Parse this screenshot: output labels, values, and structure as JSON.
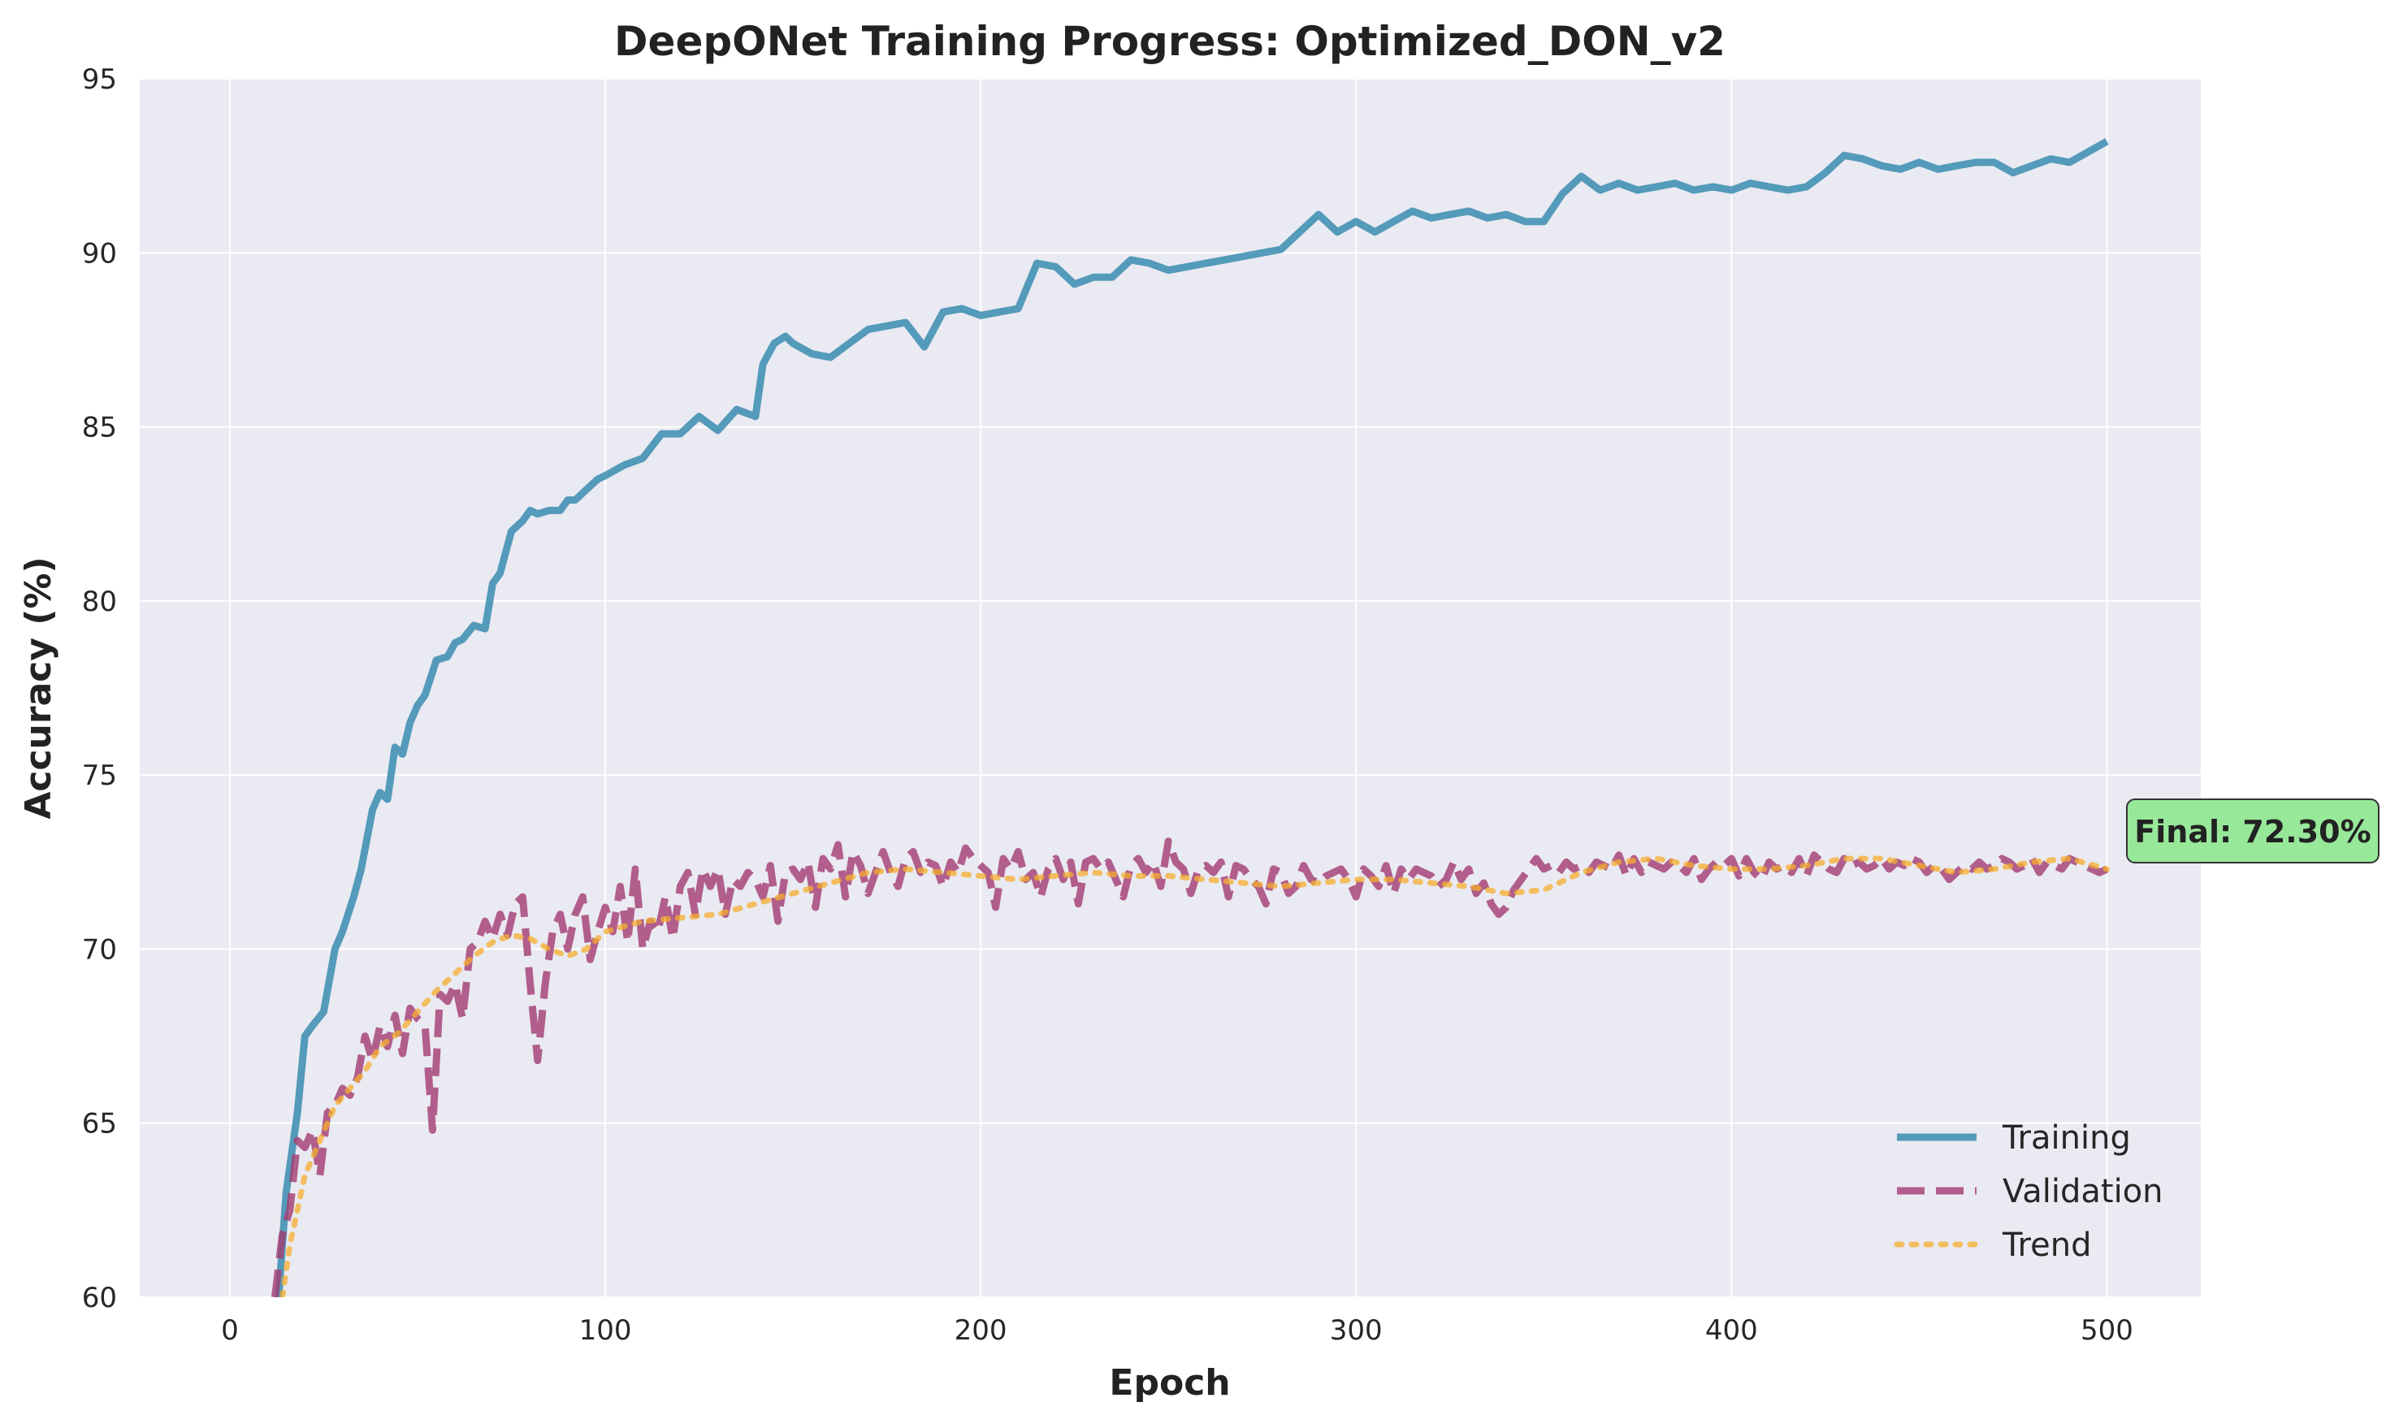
{
  "chart_data": {
    "type": "line",
    "title": "DeepONet Training Progress: Optimized_DON_v2",
    "xlabel": "Epoch",
    "ylabel": "Accuracy (%)",
    "xlim": [
      -24,
      525
    ],
    "ylim": [
      60,
      95
    ],
    "xticks": [
      0,
      100,
      200,
      300,
      400,
      500
    ],
    "yticks": [
      60,
      65,
      70,
      75,
      80,
      85,
      90,
      95
    ],
    "grid": true,
    "legend_position": "lower-right",
    "colors": {
      "training": "#2e86ab",
      "validation": "#a23b72",
      "trend": "#f6ae2d",
      "plot_bg": "#eaeaf2",
      "final_box": "#98e89a"
    },
    "annotation": {
      "text": "Final: 72.30%"
    },
    "series": [
      {
        "name": "Training",
        "style": "solid",
        "x": [
          13,
          15,
          18,
          20,
          22,
          25,
          28,
          30,
          33,
          35,
          38,
          40,
          42,
          44,
          46,
          48,
          50,
          52,
          55,
          58,
          60,
          62,
          65,
          68,
          70,
          72,
          75,
          78,
          80,
          82,
          85,
          88,
          90,
          92,
          95,
          98,
          100,
          105,
          110,
          115,
          120,
          125,
          130,
          135,
          140,
          142,
          145,
          148,
          150,
          155,
          160,
          165,
          170,
          175,
          180,
          185,
          190,
          195,
          200,
          205,
          210,
          215,
          220,
          225,
          230,
          235,
          240,
          245,
          250,
          255,
          260,
          265,
          270,
          275,
          280,
          285,
          290,
          295,
          300,
          305,
          310,
          315,
          320,
          325,
          330,
          335,
          340,
          345,
          350,
          355,
          360,
          365,
          370,
          375,
          380,
          385,
          390,
          395,
          400,
          405,
          410,
          415,
          420,
          425,
          430,
          435,
          440,
          445,
          450,
          455,
          460,
          465,
          470,
          475,
          480,
          485,
          490,
          495,
          500
        ],
        "y": [
          60.0,
          63.0,
          65.3,
          67.5,
          67.8,
          68.2,
          70.0,
          70.5,
          71.5,
          72.3,
          74.0,
          74.5,
          74.3,
          75.8,
          75.6,
          76.5,
          77.0,
          77.3,
          78.3,
          78.4,
          78.8,
          78.9,
          79.3,
          79.2,
          80.5,
          80.8,
          82.0,
          82.3,
          82.6,
          82.5,
          82.6,
          82.6,
          82.9,
          82.9,
          83.2,
          83.5,
          83.6,
          83.9,
          84.1,
          84.8,
          84.8,
          85.3,
          84.9,
          85.5,
          85.3,
          86.8,
          87.4,
          87.6,
          87.4,
          87.1,
          87.0,
          87.4,
          87.8,
          87.9,
          88.0,
          87.3,
          88.3,
          88.4,
          88.2,
          88.3,
          88.4,
          89.7,
          89.6,
          89.1,
          89.3,
          89.3,
          89.8,
          89.7,
          89.5,
          89.6,
          89.7,
          89.8,
          89.9,
          90.0,
          90.1,
          90.6,
          91.1,
          90.6,
          90.9,
          90.6,
          90.9,
          91.2,
          91.0,
          91.1,
          91.2,
          91.0,
          91.1,
          90.9,
          90.9,
          91.7,
          92.2,
          91.8,
          92.0,
          91.8,
          91.9,
          92.0,
          91.8,
          91.9,
          91.8,
          92.0,
          91.9,
          91.8,
          91.9,
          92.3,
          92.8,
          92.7,
          92.5,
          92.4,
          92.6,
          92.4,
          92.5,
          92.6,
          92.6,
          92.3,
          92.5,
          92.7,
          92.6,
          92.9,
          93.2
        ]
      },
      {
        "name": "Validation",
        "style": "dashed",
        "x": [
          12,
          14,
          16,
          18,
          20,
          22,
          24,
          26,
          28,
          30,
          32,
          34,
          36,
          38,
          40,
          42,
          44,
          46,
          48,
          50,
          52,
          54,
          56,
          58,
          60,
          62,
          64,
          66,
          68,
          70,
          72,
          74,
          76,
          78,
          80,
          82,
          84,
          86,
          88,
          90,
          92,
          94,
          96,
          98,
          100,
          102,
          104,
          106,
          108,
          110,
          112,
          114,
          116,
          118,
          120,
          122,
          124,
          126,
          128,
          130,
          132,
          134,
          136,
          138,
          140,
          142,
          144,
          146,
          148,
          150,
          152,
          154,
          156,
          158,
          160,
          162,
          164,
          166,
          168,
          170,
          172,
          174,
          176,
          178,
          180,
          182,
          184,
          186,
          188,
          190,
          192,
          194,
          196,
          198,
          200,
          202,
          204,
          206,
          208,
          210,
          212,
          214,
          216,
          218,
          220,
          222,
          224,
          226,
          228,
          230,
          232,
          234,
          236,
          238,
          240,
          242,
          244,
          246,
          248,
          250,
          252,
          254,
          256,
          258,
          260,
          262,
          264,
          266,
          268,
          270,
          272,
          274,
          276,
          278,
          280,
          282,
          284,
          286,
          288,
          290,
          292,
          294,
          296,
          298,
          300,
          302,
          304,
          306,
          308,
          310,
          312,
          314,
          316,
          318,
          320,
          322,
          324,
          326,
          328,
          330,
          332,
          334,
          336,
          338,
          340,
          342,
          344,
          346,
          348,
          350,
          352,
          354,
          356,
          358,
          360,
          362,
          364,
          366,
          368,
          370,
          372,
          374,
          376,
          378,
          380,
          382,
          384,
          386,
          388,
          390,
          392,
          394,
          396,
          398,
          400,
          402,
          404,
          406,
          408,
          410,
          412,
          414,
          416,
          418,
          420,
          422,
          424,
          426,
          428,
          430,
          432,
          434,
          436,
          438,
          440,
          442,
          444,
          446,
          448,
          450,
          452,
          454,
          456,
          458,
          460,
          462,
          464,
          466,
          468,
          470,
          472,
          474,
          476,
          478,
          480,
          482,
          484,
          486,
          488,
          490,
          492,
          494,
          496,
          498,
          500
        ],
        "y": [
          60.0,
          61.8,
          62.5,
          64.5,
          64.3,
          64.8,
          63.5,
          65.3,
          65.5,
          66.0,
          65.8,
          66.3,
          67.5,
          66.8,
          67.8,
          67.2,
          68.1,
          67.0,
          68.3,
          68.0,
          67.8,
          64.8,
          68.7,
          68.5,
          69.0,
          68.0,
          70.0,
          70.2,
          70.8,
          70.3,
          71.0,
          70.4,
          71.3,
          71.5,
          69.0,
          66.8,
          69.0,
          70.5,
          71.0,
          70.0,
          71.0,
          71.5,
          69.7,
          70.5,
          71.2,
          70.5,
          71.8,
          70.2,
          72.3,
          70.0,
          70.8,
          70.5,
          71.5,
          70.3,
          71.8,
          72.2,
          71.0,
          72.3,
          71.8,
          72.3,
          71.0,
          72.0,
          71.8,
          72.2,
          72.0,
          71.5,
          72.4,
          70.8,
          72.2,
          72.3,
          72.0,
          72.5,
          71.2,
          72.6,
          72.3,
          73.0,
          71.5,
          72.8,
          72.4,
          71.6,
          72.2,
          72.8,
          72.2,
          71.8,
          72.6,
          72.8,
          72.2,
          72.5,
          72.4,
          71.8,
          72.5,
          72.2,
          72.9,
          72.6,
          72.4,
          72.2,
          71.2,
          72.6,
          72.3,
          72.8,
          72.0,
          72.2,
          71.5,
          72.3,
          72.6,
          72.0,
          72.5,
          71.3,
          72.5,
          72.6,
          72.3,
          72.5,
          72.0,
          71.5,
          72.4,
          72.6,
          72.2,
          72.5,
          71.8,
          73.1,
          72.5,
          72.3,
          71.6,
          72.3,
          72.4,
          72.2,
          72.5,
          71.5,
          72.4,
          72.3,
          72.0,
          71.8,
          71.3,
          72.3,
          72.2,
          71.6,
          71.8,
          72.4,
          72.0,
          71.9,
          72.1,
          72.2,
          72.3,
          72.0,
          71.5,
          72.3,
          72.1,
          71.8,
          72.4,
          71.6,
          72.3,
          72.0,
          72.3,
          72.2,
          72.1,
          71.8,
          72.0,
          72.5,
          72.0,
          72.3,
          71.6,
          71.9,
          71.3,
          71.0,
          71.2,
          71.7,
          72.0,
          72.3,
          72.6,
          72.3,
          72.4,
          72.2,
          72.5,
          72.3,
          72.4,
          72.2,
          72.5,
          72.4,
          72.3,
          72.7,
          72.1,
          72.6,
          72.2,
          72.5,
          72.4,
          72.3,
          72.5,
          72.4,
          72.2,
          72.6,
          72.0,
          72.3,
          72.5,
          72.4,
          72.6,
          72.1,
          72.6,
          72.2,
          72.0,
          72.5,
          72.3,
          72.4,
          72.2,
          72.6,
          72.1,
          72.7,
          72.5,
          72.3,
          72.2,
          72.6,
          72.4,
          72.5,
          72.3,
          72.4,
          72.6,
          72.3,
          72.5,
          72.4,
          72.6,
          72.5,
          72.2,
          72.4,
          72.3,
          72.0,
          72.2,
          72.4,
          72.3,
          72.5,
          72.3,
          72.4,
          72.6,
          72.5,
          72.3,
          72.4,
          72.6,
          72.2,
          72.5,
          72.4,
          72.3,
          72.6,
          72.5,
          72.4,
          72.3,
          72.2,
          72.3
        ]
      },
      {
        "name": "Trend",
        "style": "dotted",
        "x": [
          14,
          16,
          18,
          20,
          24,
          28,
          32,
          36,
          40,
          45,
          50,
          55,
          60,
          65,
          70,
          75,
          80,
          85,
          90,
          95,
          100,
          110,
          120,
          130,
          140,
          150,
          160,
          170,
          180,
          190,
          200,
          210,
          220,
          230,
          240,
          250,
          260,
          270,
          280,
          290,
          300,
          310,
          320,
          330,
          340,
          350,
          360,
          370,
          380,
          390,
          400,
          410,
          420,
          430,
          440,
          450,
          460,
          470,
          480,
          490,
          500
        ],
        "y": [
          60.0,
          61.5,
          62.5,
          63.5,
          64.5,
          65.5,
          66.0,
          66.5,
          67.2,
          67.6,
          68.2,
          68.8,
          69.3,
          69.8,
          70.2,
          70.4,
          70.3,
          70.0,
          69.8,
          70.0,
          70.5,
          70.8,
          70.9,
          71.0,
          71.3,
          71.6,
          71.9,
          72.2,
          72.3,
          72.2,
          72.1,
          72.0,
          72.1,
          72.2,
          72.1,
          72.1,
          72.0,
          71.9,
          71.8,
          71.9,
          72.0,
          72.0,
          71.9,
          71.8,
          71.6,
          71.7,
          72.2,
          72.5,
          72.6,
          72.4,
          72.3,
          72.3,
          72.4,
          72.6,
          72.6,
          72.4,
          72.2,
          72.3,
          72.5,
          72.6,
          72.3
        ]
      }
    ]
  }
}
